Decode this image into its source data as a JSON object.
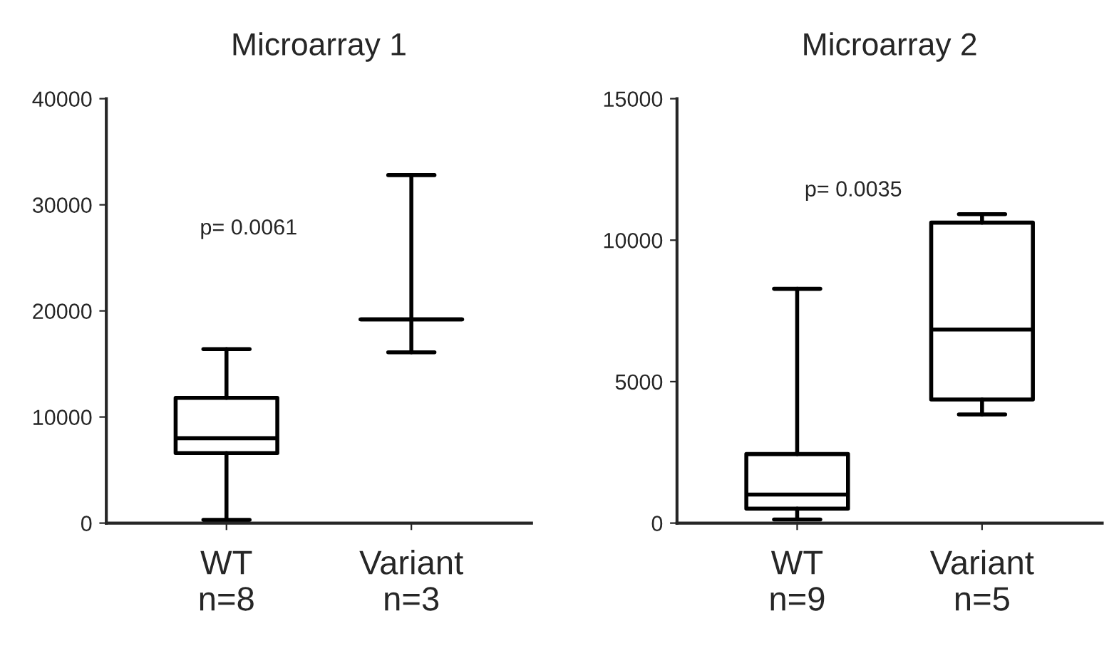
{
  "chart_data": [
    {
      "type": "box",
      "title": "Microarray 1",
      "categories": [
        "WT\nn=8",
        "Variant\nn=3"
      ],
      "boxes": [
        {
          "low": 300,
          "q1": 6600,
          "median": 8000,
          "q3": 11800,
          "high": 16400
        },
        {
          "low": 16100,
          "q1": 19200,
          "median": 19200,
          "q3": 19200,
          "high": 32800
        }
      ],
      "ylim": [
        0,
        40000
      ],
      "yticks": [
        0,
        10000,
        20000,
        30000,
        40000
      ],
      "grid": false,
      "annotations": [
        "p= 0.0061"
      ]
    },
    {
      "type": "box",
      "title": "Microarray 2",
      "categories": [
        "WT\nn=9",
        "Variant\nn=5"
      ],
      "boxes": [
        {
          "low": 130,
          "q1": 510,
          "median": 1010,
          "q3": 2440,
          "high": 8280
        },
        {
          "low": 3840,
          "q1": 4370,
          "median": 6840,
          "q3": 10620,
          "high": 10920
        }
      ],
      "ylim": [
        0,
        15000
      ],
      "yticks": [
        0,
        5000,
        10000,
        15000
      ],
      "grid": false,
      "annotations": [
        "p= 0.0035"
      ]
    }
  ]
}
